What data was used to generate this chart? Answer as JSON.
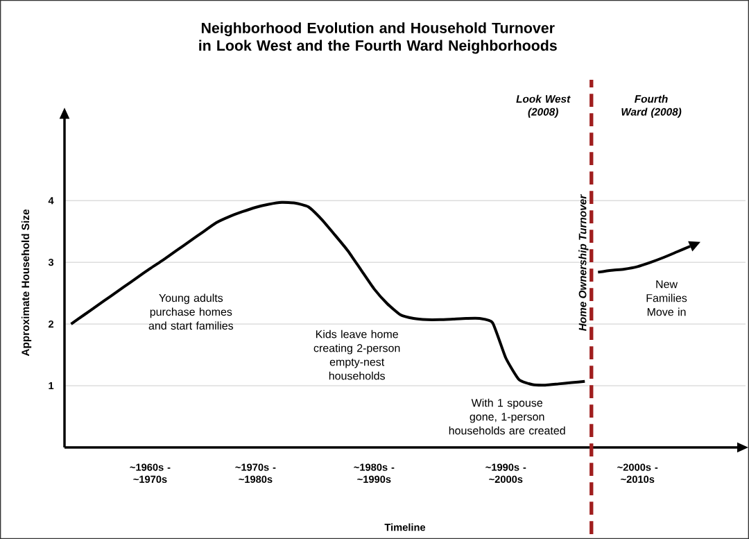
{
  "chart_data": {
    "type": "line",
    "title": "Neighborhood Evolution and Household Turnover in Look West and the Fourth Ward Neighborhoods",
    "xlabel": "Timeline",
    "ylabel": "Approximate Household Size",
    "categories": [
      null,
      null,
      null,
      null,
      null,
      null,
      "~1960s - ~1970s",
      null,
      null,
      null,
      null,
      null,
      null,
      null,
      "~1970s - ~1980s",
      null,
      null,
      null,
      null,
      null,
      null,
      null,
      null,
      "~1980s - ~1990s",
      null,
      null,
      null,
      null,
      null,
      null,
      null,
      null,
      null,
      "~1990s - ~2000s",
      null,
      null,
      null,
      null,
      null,
      null,
      null,
      null,
      null,
      "~2000s - ~2010s",
      null,
      null,
      null,
      null
    ],
    "ylim": [
      0,
      5.34
    ],
    "yticks": [
      1,
      2,
      3,
      4
    ],
    "grid": "y",
    "marker": "none",
    "line_style": "solid",
    "series": [
      {
        "color": "#000000",
        "values": [
          2.0,
          2.15,
          2.3,
          2.45,
          2.6,
          2.75,
          2.9,
          3.04,
          3.19,
          3.34,
          3.49,
          3.64,
          3.74,
          3.82,
          3.89,
          3.94,
          3.97,
          3.96,
          3.9,
          3.7,
          3.45,
          3.19,
          2.88,
          2.57,
          2.33,
          2.15,
          2.09,
          2.07,
          2.07,
          2.08,
          2.09,
          2.09,
          2.02,
          1.45,
          1.1,
          1.02,
          1.01,
          1.03,
          1.05,
          1.07,
          null,
          null,
          null,
          null,
          null,
          null,
          null,
          null
        ]
      },
      {
        "color": "#000000",
        "values": [
          null,
          null,
          null,
          null,
          null,
          null,
          null,
          null,
          null,
          null,
          null,
          null,
          null,
          null,
          null,
          null,
          null,
          null,
          null,
          null,
          null,
          null,
          null,
          null,
          null,
          null,
          null,
          null,
          null,
          null,
          null,
          null,
          null,
          null,
          null,
          null,
          null,
          null,
          null,
          null,
          2.84,
          2.87,
          2.89,
          2.93,
          3.0,
          3.08,
          3.17,
          3.26
        ]
      }
    ],
    "annotations": [
      "Young adults purchase homes and start families",
      "Kids leave home creating 2-person empty-nest households",
      "With 1 spouse gone, 1-person households are created",
      "New Families Move in",
      "Look West (2008)",
      "Fourth Ward (2008)",
      "Home Ownership Turnover"
    ]
  }
}
